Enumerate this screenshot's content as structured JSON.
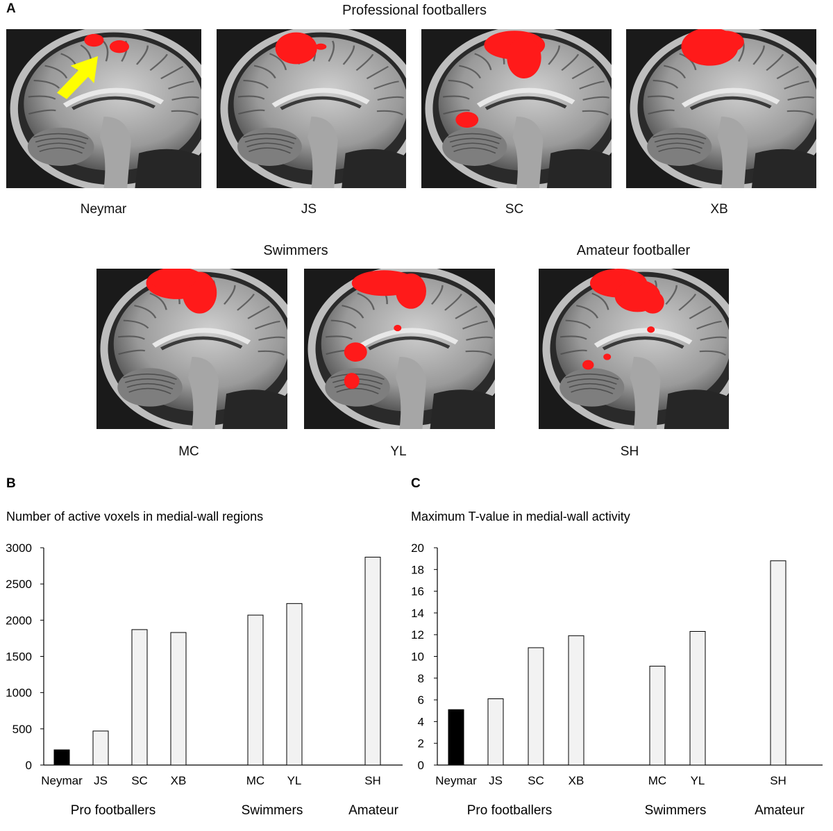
{
  "panel_a": {
    "letter": "A",
    "group_titles": {
      "pro": "Professional footballers",
      "swimmers": "Swimmers",
      "amateur": "Amateur footballer"
    },
    "scans": [
      {
        "caption": "Neymar",
        "arrow": true
      },
      {
        "caption": "JS"
      },
      {
        "caption": "SC"
      },
      {
        "caption": "XB"
      },
      {
        "caption": "MC"
      },
      {
        "caption": "YL"
      },
      {
        "caption": "SH"
      }
    ],
    "colors": {
      "activation": "#ff1a1a",
      "arrow": "#ffff00"
    }
  },
  "chart_data": [
    {
      "type": "bar",
      "panel": "B",
      "title": "Number of active voxels in medial-wall regions",
      "categories": [
        "Neymar",
        "JS",
        "SC",
        "XB",
        "MC",
        "YL",
        "SH"
      ],
      "values": [
        210,
        470,
        1870,
        1830,
        2070,
        2230,
        2870
      ],
      "groups": [
        "Pro footballers",
        "Swimmers",
        "Amateur"
      ],
      "ylim": [
        0,
        3000
      ],
      "yticks": [
        0,
        500,
        1000,
        1500,
        2000,
        2500,
        3000
      ],
      "colors": {
        "highlight": "#000000",
        "bar": "#f2f2f2"
      },
      "grid": false
    },
    {
      "type": "bar",
      "panel": "C",
      "title": "Maximum T-value in medial-wall activity",
      "categories": [
        "Neymar",
        "JS",
        "SC",
        "XB",
        "MC",
        "YL",
        "SH"
      ],
      "values": [
        5.1,
        6.1,
        10.8,
        11.9,
        9.1,
        12.3,
        18.8
      ],
      "groups": [
        "Pro footballers",
        "Swimmers",
        "Amateur"
      ],
      "ylim": [
        0,
        20
      ],
      "yticks": [
        0,
        2,
        4,
        6,
        8,
        10,
        12,
        14,
        16,
        18,
        20
      ],
      "colors": {
        "highlight": "#000000",
        "bar": "#f2f2f2"
      },
      "grid": false
    }
  ]
}
